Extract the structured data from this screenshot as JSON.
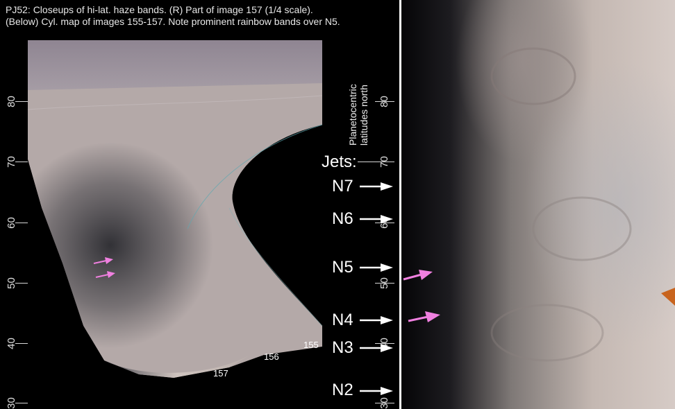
{
  "caption": {
    "line1": "PJ52:  Closeups of hi-lat. haze bands.  (R) Part of image 157 (1/4 scale).",
    "line2": "(Below)  Cyl. map of images 155-157.  Note prominent rainbow bands over N5."
  },
  "left_lat_labels": [
    "80",
    "70",
    "60",
    "50",
    "40",
    "30"
  ],
  "center_lat_labels": [
    "80",
    "70",
    "60",
    "50",
    "40",
    "30"
  ],
  "axis_title": {
    "line1": "Planetocentric",
    "line2": "latitudes north"
  },
  "jets": {
    "title": "Jets:",
    "labels": [
      "N7",
      "N6",
      "N5",
      "N4",
      "N3",
      "N2"
    ]
  },
  "image_labels": [
    "155",
    "156",
    "157"
  ],
  "colors": {
    "pointer_pink": "#f080e0",
    "pointer_orange": "#c8641e",
    "arrow": "#ffffff"
  }
}
